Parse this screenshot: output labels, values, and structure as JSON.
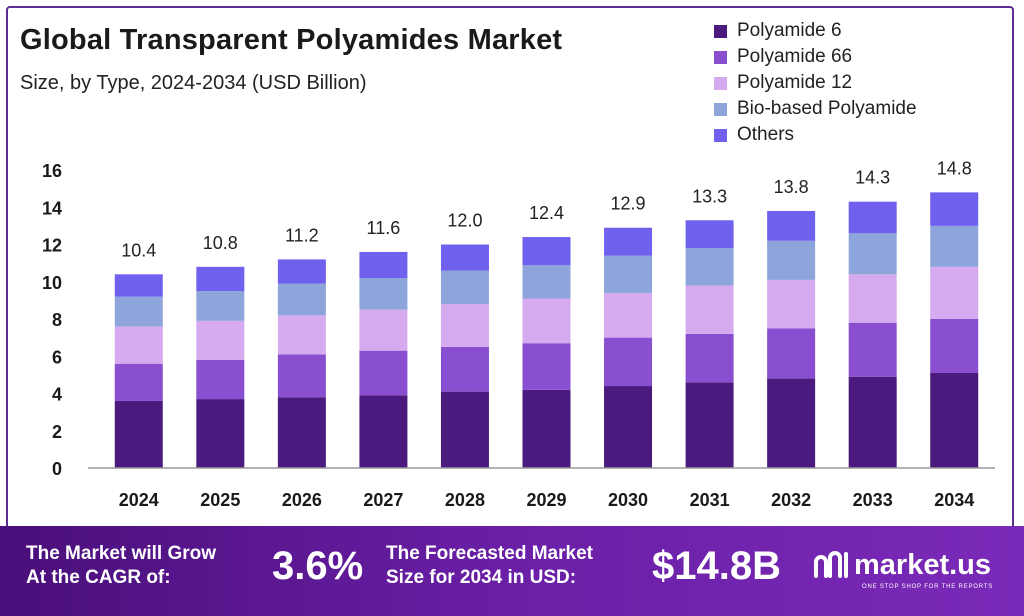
{
  "chart_data": {
    "type": "bar",
    "stacked": true,
    "title": "Global Transparent Polyamides Market",
    "subtitle": "Size, by Type, 2024-2034 (USD Billion)",
    "categories": [
      "2024",
      "2025",
      "2026",
      "2027",
      "2028",
      "2029",
      "2030",
      "2031",
      "2032",
      "2033",
      "2034"
    ],
    "totals": [
      10.4,
      10.8,
      11.2,
      11.6,
      12.0,
      12.4,
      12.9,
      13.3,
      13.8,
      14.3,
      14.8
    ],
    "total_labels": [
      "10.4",
      "10.8",
      "11.2",
      "11.6",
      "12.0",
      "12.4",
      "12.9",
      "13.3",
      "13.8",
      "14.3",
      "14.8"
    ],
    "series": [
      {
        "name": "Polyamide 6",
        "color": "#4a1a7e",
        "values": [
          3.6,
          3.7,
          3.8,
          3.9,
          4.1,
          4.2,
          4.4,
          4.6,
          4.8,
          4.9,
          5.1
        ]
      },
      {
        "name": "Polyamide 66",
        "color": "#8a4fd0",
        "values": [
          2.0,
          2.1,
          2.3,
          2.4,
          2.4,
          2.5,
          2.6,
          2.6,
          2.7,
          2.9,
          2.9
        ]
      },
      {
        "name": "Polyamide 12",
        "color": "#d6aaee",
        "values": [
          2.0,
          2.1,
          2.1,
          2.2,
          2.3,
          2.4,
          2.4,
          2.6,
          2.6,
          2.6,
          2.8
        ]
      },
      {
        "name": "Bio-based Polyamide",
        "color": "#8ea5dc",
        "values": [
          1.6,
          1.6,
          1.7,
          1.7,
          1.8,
          1.8,
          2.0,
          2.0,
          2.1,
          2.2,
          2.2
        ]
      },
      {
        "name": "Others",
        "color": "#7060ee",
        "values": [
          1.2,
          1.3,
          1.3,
          1.4,
          1.4,
          1.5,
          1.5,
          1.5,
          1.6,
          1.7,
          1.8
        ]
      }
    ],
    "ylim": [
      0,
      16
    ],
    "yticks": [
      "0",
      "2",
      "4",
      "6",
      "8",
      "10",
      "12",
      "14",
      "16"
    ],
    "grid": false,
    "legend": "top-right"
  },
  "footer": {
    "cagr_line1": "The Market will Grow",
    "cagr_line2": "At the CAGR of:",
    "cagr_value": "3.6%",
    "forecast_line1": "The Forecasted Market",
    "forecast_line2": "Size for 2034 in USD:",
    "forecast_value": "$14.8B",
    "brand_name": "market.us",
    "brand_tagline": "ONE STOP SHOP FOR THE REPORTS",
    "brand_icon": "market-us-logo-icon"
  }
}
